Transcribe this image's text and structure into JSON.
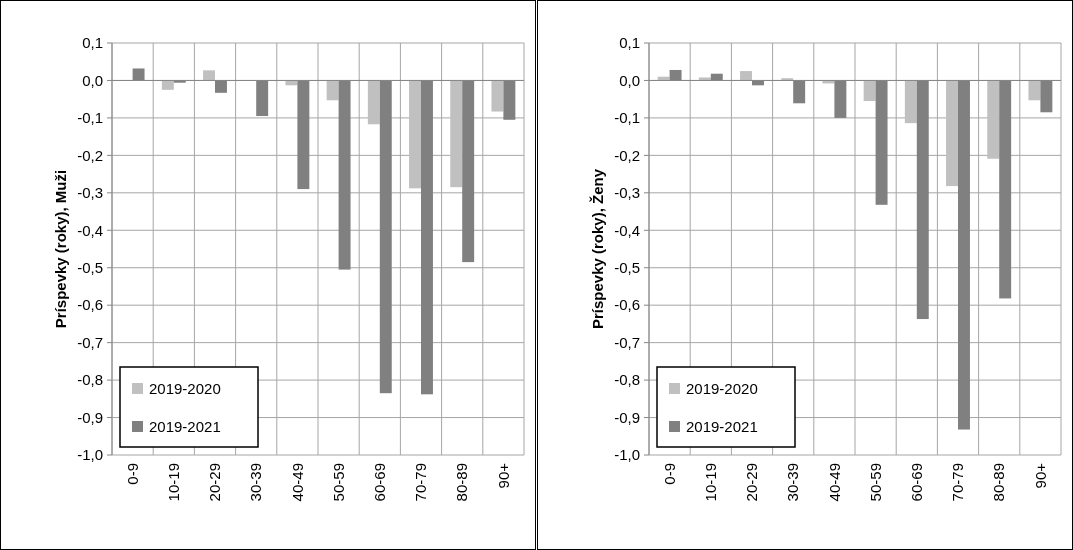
{
  "chart_data": [
    {
      "type": "bar",
      "ylabel": "Príspevky (roky), Muži",
      "categories": [
        "0-9",
        "10-19",
        "20-29",
        "30-39",
        "40-49",
        "50-59",
        "60-69",
        "70-79",
        "80-89",
        "90+"
      ],
      "series": [
        {
          "name": "2019-2020",
          "color": "#c0c0c0",
          "values": [
            null,
            -0.025,
            0.027,
            null,
            -0.013,
            -0.053,
            -0.117,
            -0.288,
            -0.285,
            -0.083
          ]
        },
        {
          "name": "2019-2021",
          "color": "#808080",
          "values": [
            0.032,
            -0.006,
            -0.033,
            -0.095,
            -0.29,
            -0.505,
            -0.835,
            -0.838,
            -0.485,
            -0.105
          ]
        }
      ],
      "ylim": [
        -1.0,
        0.1
      ],
      "yticks": [
        {
          "value": 0.1,
          "label": "0,1"
        },
        {
          "value": 0.0,
          "label": "0,0"
        },
        {
          "value": -0.1,
          "label": "-0,1"
        },
        {
          "value": -0.2,
          "label": "-0,2"
        },
        {
          "value": -0.3,
          "label": "-0,3"
        },
        {
          "value": -0.4,
          "label": "-0,4"
        },
        {
          "value": -0.5,
          "label": "-0,5"
        },
        {
          "value": -0.6,
          "label": "-0,6"
        },
        {
          "value": -0.7,
          "label": "-0,7"
        },
        {
          "value": -0.8,
          "label": "-0,8"
        },
        {
          "value": -0.9,
          "label": "-0,9"
        },
        {
          "value": -1.0,
          "label": "-1,0"
        }
      ],
      "grid": true,
      "legend": "bottom left"
    },
    {
      "type": "bar",
      "ylabel": "Príspevky (roky), Ženy",
      "categories": [
        "0-9",
        "10-19",
        "20-29",
        "30-39",
        "40-49",
        "50-59",
        "60-69",
        "70-79",
        "80-89",
        "90+"
      ],
      "series": [
        {
          "name": "2019-2020",
          "color": "#c0c0c0",
          "values": [
            0.01,
            0.008,
            0.025,
            0.006,
            -0.008,
            -0.055,
            -0.114,
            -0.282,
            -0.209,
            -0.053
          ]
        },
        {
          "name": "2019-2021",
          "color": "#808080",
          "values": [
            0.028,
            0.018,
            -0.013,
            -0.061,
            -0.1,
            -0.332,
            -0.637,
            -0.932,
            -0.582,
            -0.085
          ]
        }
      ],
      "ylim": [
        -1.0,
        0.1
      ],
      "yticks": [
        {
          "value": 0.1,
          "label": "0,1"
        },
        {
          "value": 0.0,
          "label": "0,0"
        },
        {
          "value": -0.1,
          "label": "-0,1"
        },
        {
          "value": -0.2,
          "label": "-0,2"
        },
        {
          "value": -0.3,
          "label": "-0,3"
        },
        {
          "value": -0.4,
          "label": "-0,4"
        },
        {
          "value": -0.5,
          "label": "-0,5"
        },
        {
          "value": -0.6,
          "label": "-0,6"
        },
        {
          "value": -0.7,
          "label": "-0,7"
        },
        {
          "value": -0.8,
          "label": "-0,8"
        },
        {
          "value": -0.9,
          "label": "-0,9"
        },
        {
          "value": -1.0,
          "label": "-1,0"
        }
      ],
      "grid": true,
      "legend": "bottom left"
    }
  ]
}
